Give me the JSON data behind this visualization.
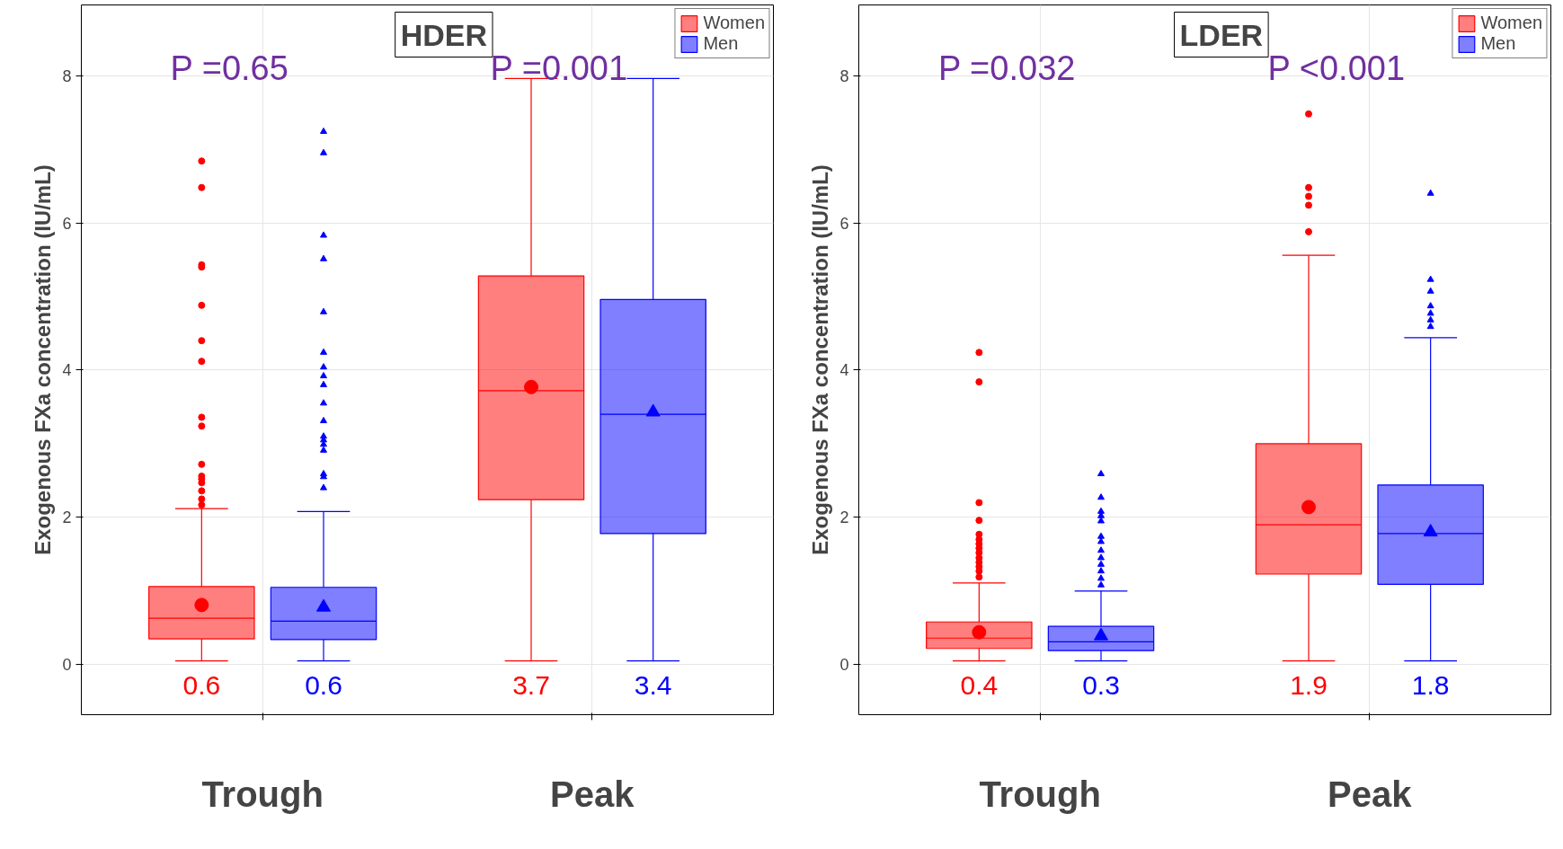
{
  "chart_data": [
    {
      "type": "box",
      "title": "HDER",
      "ylabel": "Exogenous FXa concentration (IU/mL)",
      "categories": [
        "Trough",
        "Peak"
      ],
      "ylim": [
        -0.68,
        8.96
      ],
      "yticks": [
        0,
        2,
        4,
        6,
        8
      ],
      "grid": true,
      "legend": "top right",
      "annotations": [
        "P =0.65",
        "P =0.001"
      ],
      "series": [
        {
          "name": "Women",
          "color": "#ff0000",
          "marker": "circle",
          "value_labels": [
            "0.6",
            "3.7"
          ],
          "boxes": [
            {
              "low": 0.05,
              "q1": 0.35,
              "median": 0.63,
              "q3": 1.06,
              "high": 2.12,
              "mean": 0.81,
              "outliers": [
                6.84,
                6.48,
                5.43,
                5.4,
                4.88,
                4.4,
                4.12,
                3.36,
                3.24,
                2.72,
                2.56,
                2.52,
                2.47,
                2.36,
                2.25,
                2.17
              ]
            },
            {
              "low": 0.05,
              "q1": 2.24,
              "median": 3.72,
              "q3": 5.28,
              "high": 7.96,
              "mean": 3.77
            }
          ]
        },
        {
          "name": "Men",
          "color": "#0000ff",
          "marker": "triangle",
          "value_labels": [
            "0.6",
            "3.4"
          ],
          "boxes": [
            {
              "low": 0.05,
              "q1": 0.34,
              "median": 0.59,
              "q3": 1.05,
              "high": 2.08,
              "mean": 0.78,
              "outliers": [
                7.24,
                6.95,
                5.83,
                5.51,
                4.79,
                4.24,
                4.04,
                3.92,
                3.8,
                3.55,
                3.31,
                3.1,
                3.05,
                2.99,
                2.91,
                2.59,
                2.55,
                2.4
              ]
            },
            {
              "low": 0.05,
              "q1": 1.78,
              "median": 3.4,
              "q3": 4.96,
              "high": 7.96,
              "mean": 3.43
            }
          ]
        }
      ]
    },
    {
      "type": "box",
      "title": "LDER",
      "ylabel": "Exogenous FXa concentration (IU/mL)",
      "categories": [
        "Trough",
        "Peak"
      ],
      "ylim": [
        -0.68,
        8.96
      ],
      "yticks": [
        0,
        2,
        4,
        6,
        8
      ],
      "grid": true,
      "legend": "top right",
      "annotations": [
        "P =0.032",
        "P <0.001"
      ],
      "series": [
        {
          "name": "Women",
          "color": "#ff0000",
          "marker": "circle",
          "value_labels": [
            "0.4",
            "1.9"
          ],
          "boxes": [
            {
              "low": 0.05,
              "q1": 0.22,
              "median": 0.36,
              "q3": 0.58,
              "high": 1.11,
              "mean": 0.44,
              "outliers": [
                4.24,
                3.84,
                2.2,
                1.96,
                1.77,
                1.7,
                1.64,
                1.58,
                1.52,
                1.45,
                1.39,
                1.33,
                1.27,
                1.19
              ]
            },
            {
              "low": 0.05,
              "q1": 1.23,
              "median": 1.9,
              "q3": 3.0,
              "high": 5.56,
              "mean": 2.14,
              "outliers": [
                7.48,
                6.48,
                6.36,
                6.24,
                5.88
              ]
            }
          ]
        },
        {
          "name": "Men",
          "color": "#0000ff",
          "marker": "triangle",
          "value_labels": [
            "0.3",
            "1.8"
          ],
          "boxes": [
            {
              "low": 0.05,
              "q1": 0.19,
              "median": 0.31,
              "q3": 0.52,
              "high": 1.0,
              "mean": 0.39,
              "outliers": [
                2.59,
                2.27,
                2.08,
                2.02,
                1.95,
                1.74,
                1.67,
                1.55,
                1.45,
                1.36,
                1.27,
                1.17,
                1.08
              ]
            },
            {
              "low": 0.05,
              "q1": 1.09,
              "median": 1.78,
              "q3": 2.44,
              "high": 4.44,
              "mean": 1.8,
              "outliers": [
                6.4,
                5.23,
                5.07,
                4.87,
                4.77,
                4.68,
                4.59
              ]
            }
          ]
        }
      ]
    }
  ]
}
